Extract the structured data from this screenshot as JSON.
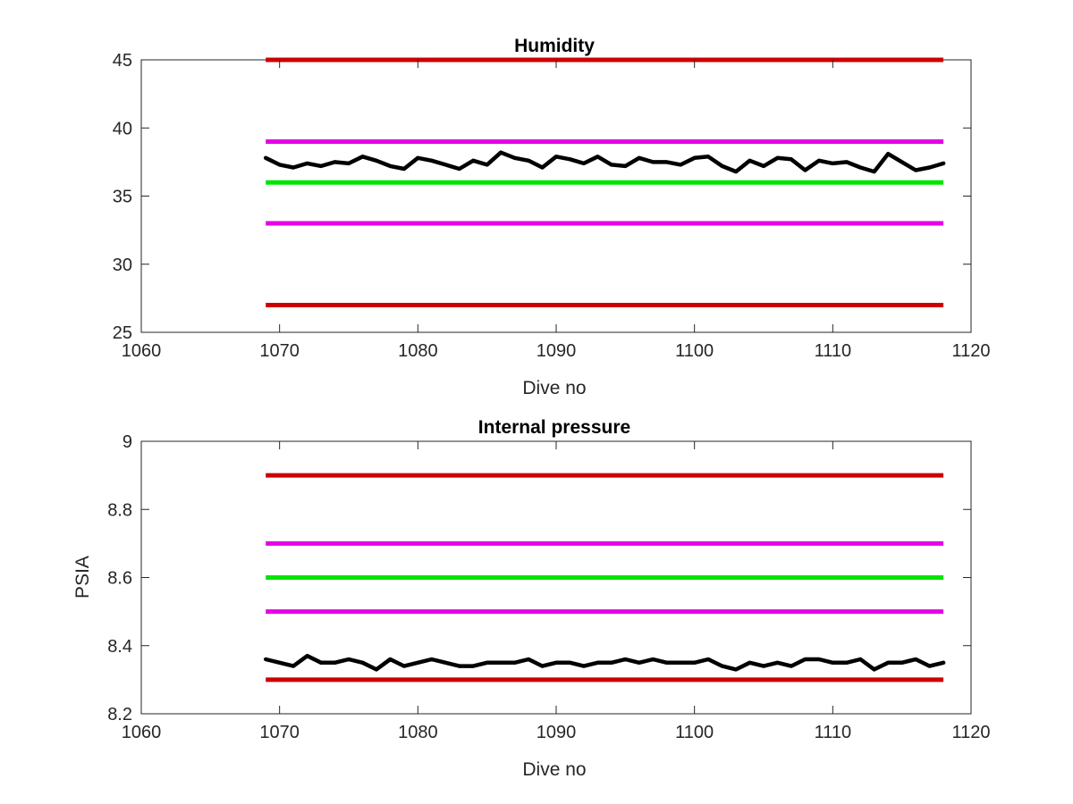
{
  "chart_data": [
    {
      "type": "line",
      "title": "Humidity",
      "xlabel": "Dive no",
      "ylabel": "",
      "xlim": [
        1060,
        1120
      ],
      "ylim": [
        25,
        45
      ],
      "xticks": [
        1060,
        1070,
        1080,
        1090,
        1100,
        1110,
        1120
      ],
      "yticks": [
        25,
        30,
        35,
        40,
        45
      ],
      "xtick_labels": [
        "1060",
        "1070",
        "1080",
        "1090",
        "1100",
        "1110",
        "1120"
      ],
      "ytick_labels": [
        "25",
        "30",
        "35",
        "40",
        "45"
      ],
      "grid": false,
      "reference_lines": [
        {
          "y": 45,
          "x": [
            1069,
            1118
          ],
          "color": "#cc0000"
        },
        {
          "y": 39,
          "x": [
            1069,
            1118
          ],
          "color": "#e600e6"
        },
        {
          "y": 36,
          "x": [
            1069,
            1118
          ],
          "color": "#00e600"
        },
        {
          "y": 33,
          "x": [
            1069,
            1118
          ],
          "color": "#e600e6"
        },
        {
          "y": 27,
          "x": [
            1069,
            1118
          ],
          "color": "#cc0000"
        }
      ],
      "series": [
        {
          "color": "#000000",
          "x": [
            1069,
            1070,
            1071,
            1072,
            1073,
            1074,
            1075,
            1076,
            1077,
            1078,
            1079,
            1080,
            1081,
            1082,
            1083,
            1084,
            1085,
            1086,
            1087,
            1088,
            1089,
            1090,
            1091,
            1092,
            1093,
            1094,
            1095,
            1096,
            1097,
            1098,
            1099,
            1100,
            1101,
            1102,
            1103,
            1104,
            1105,
            1106,
            1107,
            1108,
            1109,
            1110,
            1111,
            1112,
            1113,
            1114,
            1115,
            1116,
            1117,
            1118
          ],
          "y": [
            37.8,
            37.3,
            37.1,
            37.4,
            37.2,
            37.5,
            37.4,
            37.9,
            37.6,
            37.2,
            37.0,
            37.8,
            37.6,
            37.3,
            37.0,
            37.6,
            37.3,
            38.2,
            37.8,
            37.6,
            37.1,
            37.9,
            37.7,
            37.4,
            37.9,
            37.3,
            37.2,
            37.8,
            37.5,
            37.5,
            37.3,
            37.8,
            37.9,
            37.2,
            36.8,
            37.6,
            37.2,
            37.8,
            37.7,
            36.9,
            37.6,
            37.4,
            37.5,
            37.1,
            36.8,
            38.1,
            37.5,
            36.9,
            37.1,
            37.4
          ]
        }
      ]
    },
    {
      "type": "line",
      "title": "Internal pressure",
      "xlabel": "Dive no",
      "ylabel": "PSIA",
      "xlim": [
        1060,
        1120
      ],
      "ylim": [
        8.2,
        9.0
      ],
      "xticks": [
        1060,
        1070,
        1080,
        1090,
        1100,
        1110,
        1120
      ],
      "yticks": [
        8.2,
        8.4,
        8.6,
        8.8,
        9.0
      ],
      "xtick_labels": [
        "1060",
        "1070",
        "1080",
        "1090",
        "1100",
        "1110",
        "1120"
      ],
      "ytick_labels": [
        "8.2",
        "8.4",
        "8.6",
        "8.8",
        "9"
      ],
      "grid": false,
      "reference_lines": [
        {
          "y": 8.9,
          "x": [
            1069,
            1118
          ],
          "color": "#cc0000"
        },
        {
          "y": 8.7,
          "x": [
            1069,
            1118
          ],
          "color": "#e600e6"
        },
        {
          "y": 8.6,
          "x": [
            1069,
            1118
          ],
          "color": "#00e600"
        },
        {
          "y": 8.5,
          "x": [
            1069,
            1118
          ],
          "color": "#e600e6"
        },
        {
          "y": 8.3,
          "x": [
            1069,
            1118
          ],
          "color": "#cc0000"
        }
      ],
      "series": [
        {
          "color": "#000000",
          "x": [
            1069,
            1070,
            1071,
            1072,
            1073,
            1074,
            1075,
            1076,
            1077,
            1078,
            1079,
            1080,
            1081,
            1082,
            1083,
            1084,
            1085,
            1086,
            1087,
            1088,
            1089,
            1090,
            1091,
            1092,
            1093,
            1094,
            1095,
            1096,
            1097,
            1098,
            1099,
            1100,
            1101,
            1102,
            1103,
            1104,
            1105,
            1106,
            1107,
            1108,
            1109,
            1110,
            1111,
            1112,
            1113,
            1114,
            1115,
            1116,
            1117,
            1118
          ],
          "y": [
            8.36,
            8.35,
            8.34,
            8.37,
            8.35,
            8.35,
            8.36,
            8.35,
            8.33,
            8.36,
            8.34,
            8.35,
            8.36,
            8.35,
            8.34,
            8.34,
            8.35,
            8.35,
            8.35,
            8.36,
            8.34,
            8.35,
            8.35,
            8.34,
            8.35,
            8.35,
            8.36,
            8.35,
            8.36,
            8.35,
            8.35,
            8.35,
            8.36,
            8.34,
            8.33,
            8.35,
            8.34,
            8.35,
            8.34,
            8.36,
            8.36,
            8.35,
            8.35,
            8.36,
            8.33,
            8.35,
            8.35,
            8.36,
            8.34,
            8.35
          ]
        }
      ]
    }
  ]
}
